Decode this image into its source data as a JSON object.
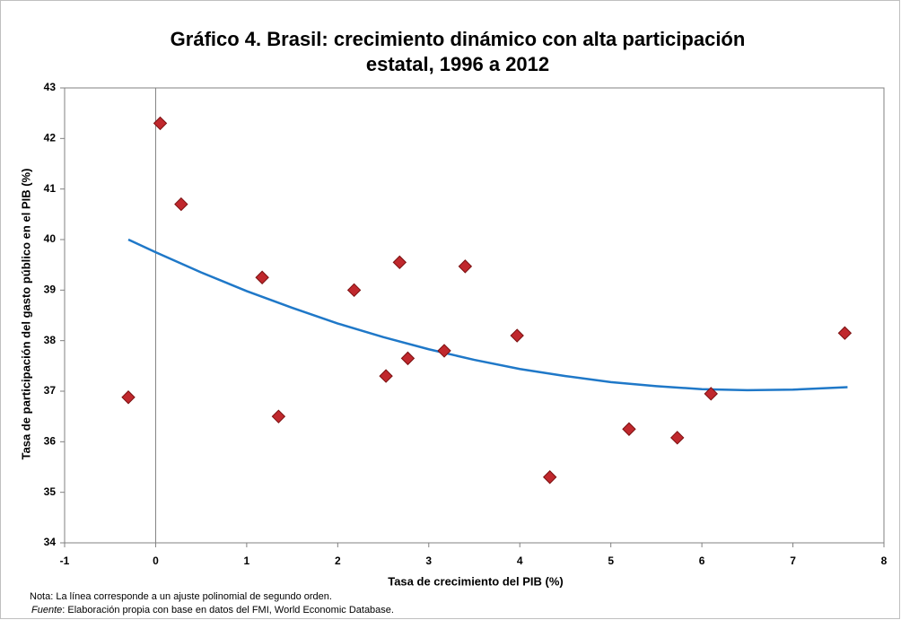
{
  "chart_data": {
    "type": "scatter",
    "title": [
      "Gráfico 4. Brasil: crecimiento dinámico con alta participación",
      "estatal, 1996 a 2012"
    ],
    "x_label": "Tasa de crecimiento del PIB  (%)",
    "y_label": "Tasa de participación del gasto público en el PIB (%)",
    "notes": [
      "Nota: La línea corresponde a un ajuste polinomial de segundo orden.",
      "Fuente",
      ": Elaboración propia con base en datos del FMI, World Economic Database."
    ],
    "xlim": [
      -1,
      8
    ],
    "xticks": [
      -1,
      0,
      1,
      2,
      3,
      4,
      5,
      6,
      7,
      8
    ],
    "ylim": [
      34,
      43
    ],
    "yticks": [
      34,
      35,
      36,
      37,
      38,
      39,
      40,
      41,
      42,
      43
    ],
    "grid": false,
    "points": {
      "color": "#c0282d",
      "x": [
        -0.3,
        0.05,
        0.28,
        1.17,
        1.35,
        2.18,
        2.53,
        2.68,
        2.77,
        3.17,
        3.4,
        3.97,
        4.33,
        5.2,
        5.73,
        6.1,
        7.57
      ],
      "values": [
        36.88,
        42.3,
        40.7,
        39.25,
        36.5,
        39.0,
        37.3,
        39.55,
        37.65,
        37.8,
        39.47,
        38.1,
        35.3,
        36.25,
        36.08,
        36.95,
        38.15
      ]
    },
    "trend": {
      "color": "#1f78c8",
      "x": [
        -0.3,
        0,
        0.5,
        1,
        1.5,
        2,
        2.5,
        3,
        3.5,
        4,
        4.5,
        5,
        5.5,
        6,
        6.5,
        7,
        7.6
      ],
      "values": [
        40.0,
        39.75,
        39.35,
        38.98,
        38.65,
        38.34,
        38.07,
        37.83,
        37.62,
        37.44,
        37.3,
        37.18,
        37.1,
        37.04,
        37.02,
        37.03,
        37.08
      ]
    }
  }
}
